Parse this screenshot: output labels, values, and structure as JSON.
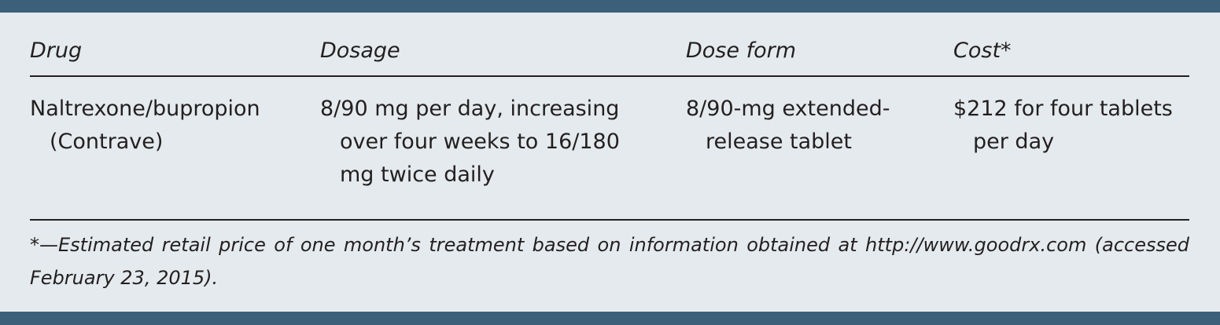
{
  "table": {
    "headers": [
      "Drug",
      "Dosage",
      "Dose form",
      "Cost*"
    ],
    "rows": [
      [
        "Naltrexone/bupropion (Contrave)",
        "8/90 mg per day, increasing over four weeks to 16/180 mg twice daily",
        "8/90-mg extended-release tablet",
        "$212 for four tablets per day"
      ]
    ]
  },
  "footnote": "*—Estimated retail price of one month’s treatment based on information obtained at http://www.goodrx.com (accessed February 23, 2015).",
  "colors": {
    "bar": "#3c6079",
    "background": "#e4eaed"
  }
}
